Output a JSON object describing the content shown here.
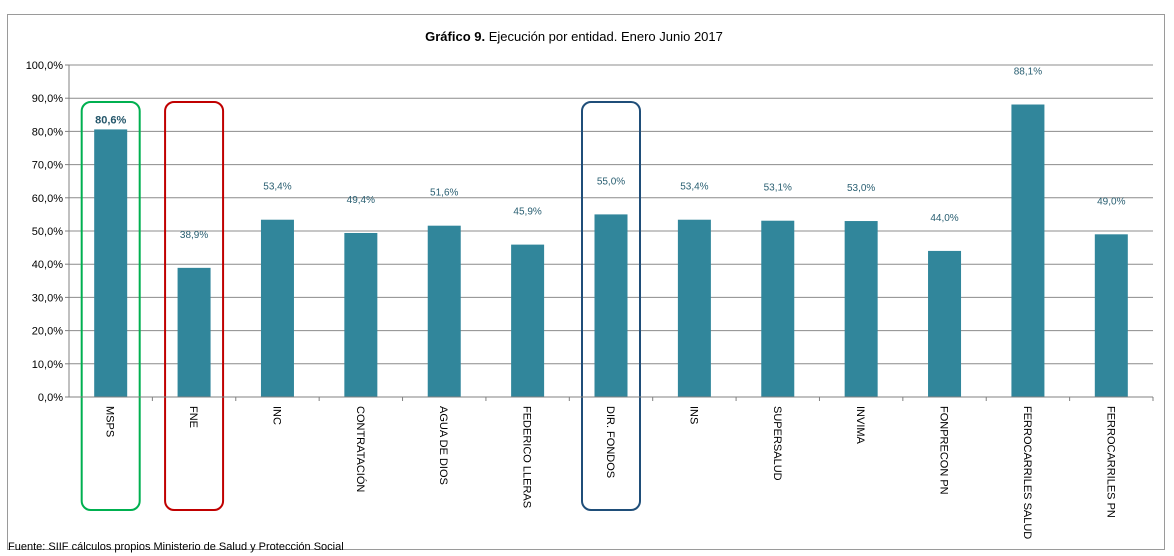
{
  "chart_data": {
    "type": "bar",
    "title_bold": "Gráfico 9.",
    "title_rest": " Ejecución  por entidad. Enero Junio 2017",
    "categories": [
      "MSPS",
      "FNE",
      "INC",
      "CONTRATACIÓN",
      "AGUA DE DIOS",
      "FEDERICO  LLERAS",
      "DIR.  FONDOS",
      "INS",
      "SUPERSALUD",
      "INVIMA",
      "FONPRECON PN",
      "FERROCARRILES SALUD",
      "FERROCARRILES PN"
    ],
    "values": [
      80.6,
      38.9,
      53.4,
      49.4,
      51.6,
      45.9,
      55.0,
      53.4,
      53.1,
      53.0,
      44.0,
      88.1,
      49.0
    ],
    "value_labels": [
      "80,6%",
      "38,9%",
      "53,4%",
      "49,4%",
      "51,6%",
      "45,9%",
      "55,0%",
      "53,4%",
      "53,1%",
      "53,0%",
      "44,0%",
      "88,1%",
      "49,0%"
    ],
    "y_ticks": [
      "0,0%",
      "10,0%",
      "20,0%",
      "30,0%",
      "40,0%",
      "50,0%",
      "60,0%",
      "70,0%",
      "80,0%",
      "90,0%",
      "100,0%"
    ],
    "ylim": [
      0,
      100
    ],
    "grid": true,
    "bar_color": "#31869b",
    "highlights": [
      {
        "category": "MSPS",
        "color": "#00b050"
      },
      {
        "category": "FNE",
        "color": "#c00000"
      },
      {
        "category": "DIR.  FONDOS",
        "color": "#1f4e79"
      }
    ],
    "bold_labels": [
      "MSPS"
    ],
    "label_top": [
      "MSPS"
    ]
  },
  "source": "Fuente:  SIIF cálculos propios Ministerio de Salud y Protección Social"
}
